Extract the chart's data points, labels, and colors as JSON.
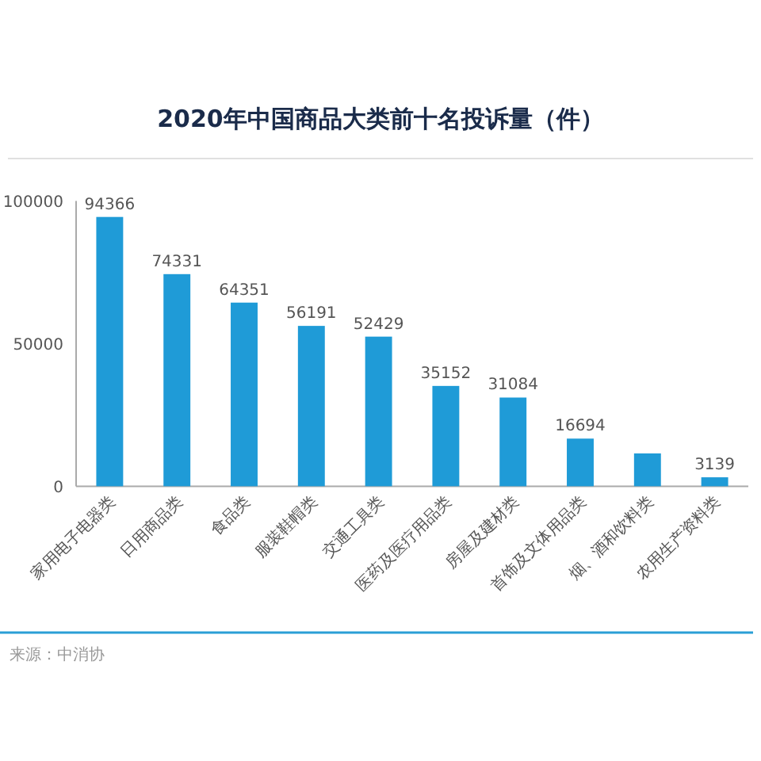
{
  "chart_data": {
    "type": "bar",
    "title": "2020年中国商品大类前十名投诉量（件）",
    "categories": [
      "家用电子电器类",
      "日用商品类",
      "食品类",
      "服装鞋帽类",
      "交通工具类",
      "医药及医疗用品类",
      "房屋及建材类",
      "首饰及文体用品类",
      "烟、酒和饮料类",
      "农用生产资料类"
    ],
    "values": [
      94366,
      74331,
      64351,
      56191,
      52429,
      35152,
      31084,
      16694,
      11500,
      3139
    ],
    "value_labels": [
      "94366",
      "74331",
      "64351",
      "56191",
      "52429",
      "35152",
      "31084",
      "16694",
      null,
      "3139"
    ],
    "color": "#1f9bd7",
    "ylim": [
      0,
      100000
    ],
    "yticks": [
      0,
      50000,
      100000
    ],
    "annotations": [
      "来源：中消协"
    ]
  }
}
